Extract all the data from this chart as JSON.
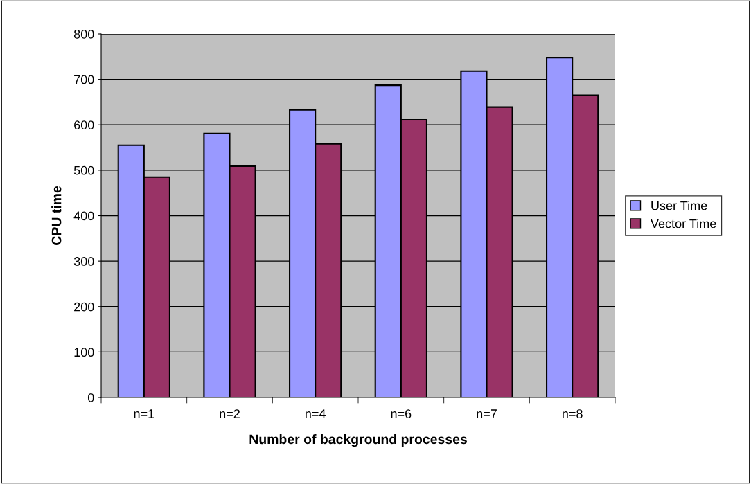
{
  "chart_data": {
    "type": "bar",
    "xlabel": "Number of background processes",
    "ylabel": "CPU time",
    "categories": [
      "n=1",
      "n=2",
      "n=4",
      "n=6",
      "n=7",
      "n=8"
    ],
    "series": [
      {
        "name": "User Time",
        "color": "#9999ff",
        "values": [
          555,
          581,
          633,
          687,
          718,
          748
        ]
      },
      {
        "name": "Vector Time",
        "color": "#993366",
        "values": [
          485,
          509,
          558,
          611,
          639,
          665
        ]
      }
    ],
    "ylim": [
      0,
      800
    ],
    "yticks": [
      0,
      100,
      200,
      300,
      400,
      500,
      600,
      700,
      800
    ],
    "grid": "y",
    "legend": "right"
  }
}
